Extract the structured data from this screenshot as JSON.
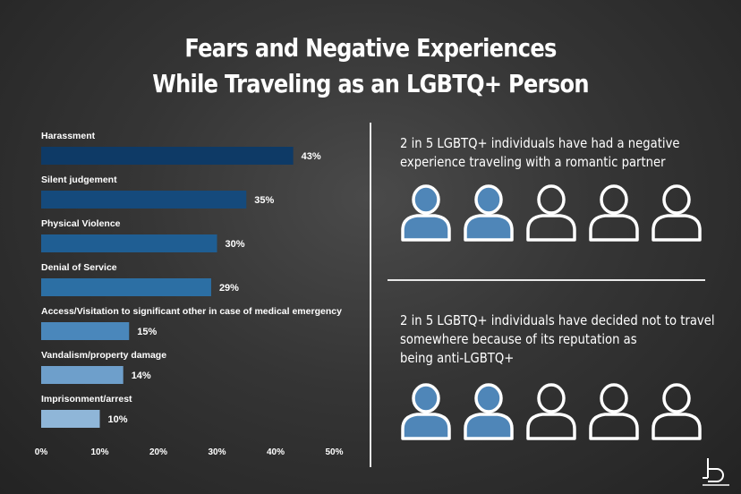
{
  "title": {
    "line1": "Fears and Negative Experiences",
    "line2": "While Traveling as an LGBTQ+ Person"
  },
  "chart_data": {
    "type": "bar",
    "orientation": "horizontal",
    "categories": [
      "Harassment",
      "Silent judgement",
      "Physical Violence",
      "Denial of Service",
      "Access/Visitation to significant other in case of medical emergency",
      "Vandalism/property damage",
      "Imprisonment/arrest"
    ],
    "values": [
      43,
      35,
      30,
      29,
      15,
      14,
      10
    ],
    "value_labels": [
      "43%",
      "35%",
      "30%",
      "29%",
      "15%",
      "14%",
      "10%"
    ],
    "bar_colors": [
      "#0e3a66",
      "#154a7c",
      "#1f5e93",
      "#2c6fa4",
      "#4a87bb",
      "#6e9fcb",
      "#8fb6d8"
    ],
    "xlim": [
      0,
      50
    ],
    "xticks": [
      "0%",
      "10%",
      "20%",
      "30%",
      "40%",
      "50%"
    ],
    "grid": false
  },
  "stats": [
    {
      "lines": [
        "2 in 5 LGBTQ+ individuals have had a negative",
        "experience traveling with a romantic partner"
      ],
      "filled": 2,
      "total": 5
    },
    {
      "lines": [
        "2 in 5 LGBTQ+ individuals have decided not to travel",
        "somewhere because of its reputation as",
        "being anti-LGBTQ+"
      ],
      "filled": 2,
      "total": 5
    }
  ],
  "colors": {
    "person_filled": "#4f86b8",
    "person_outline": "#ffffff"
  },
  "icons": {
    "person": "person-icon",
    "brand": "brand-logo-icon"
  }
}
